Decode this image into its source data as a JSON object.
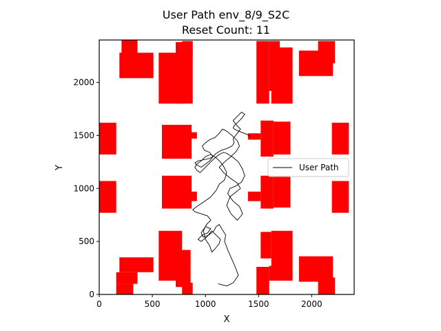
{
  "chart_data": {
    "type": "line",
    "title": "User Path env_8/9_S2C",
    "subtitle": "Reset Count: 11",
    "xlabel": "X",
    "ylabel": "Y",
    "xlim": [
      0,
      2400
    ],
    "ylim": [
      0,
      2400
    ],
    "x_ticks": [
      0,
      500,
      1000,
      1500,
      2000
    ],
    "y_ticks": [
      0,
      500,
      1000,
      1500,
      2000
    ],
    "grid": false,
    "legend": {
      "position": "right",
      "entries": [
        "User Path"
      ]
    },
    "colors": {
      "obstacle": "#ff0000",
      "path": "#000000"
    },
    "obstacles": [
      [
        160,
        0,
        160,
        100
      ],
      [
        160,
        100,
        200,
        110
      ],
      [
        190,
        210,
        320,
        140
      ],
      [
        210,
        2160,
        150,
        240
      ],
      [
        190,
        2040,
        320,
        240
      ],
      [
        560,
        130,
        220,
        470
      ],
      [
        720,
        70,
        140,
        350
      ],
      [
        780,
        0,
        100,
        110
      ],
      [
        840,
        300,
        20,
        50
      ],
      [
        560,
        1800,
        240,
        480
      ],
      [
        720,
        1800,
        160,
        580
      ],
      [
        780,
        2240,
        100,
        150
      ],
      [
        0,
        1320,
        160,
        300
      ],
      [
        0,
        770,
        160,
        300
      ],
      [
        590,
        1280,
        280,
        320
      ],
      [
        820,
        1470,
        100,
        60
      ],
      [
        590,
        810,
        280,
        310
      ],
      [
        820,
        880,
        100,
        90
      ],
      [
        1480,
        0,
        120,
        260
      ],
      [
        1600,
        130,
        100,
        140
      ],
      [
        1520,
        340,
        100,
        250
      ],
      [
        1620,
        130,
        200,
        470
      ],
      [
        1480,
        1800,
        120,
        590
      ],
      [
        1600,
        1920,
        100,
        470
      ],
      [
        1620,
        1800,
        200,
        530
      ],
      [
        1400,
        1460,
        120,
        60
      ],
      [
        1520,
        1300,
        120,
        340
      ],
      [
        1640,
        1320,
        160,
        310
      ],
      [
        1400,
        880,
        120,
        90
      ],
      [
        1520,
        810,
        120,
        310
      ],
      [
        1640,
        820,
        160,
        300
      ],
      [
        1880,
        2060,
        320,
        240
      ],
      [
        2060,
        2180,
        160,
        210
      ],
      [
        1880,
        120,
        320,
        240
      ],
      [
        2060,
        0,
        160,
        160
      ],
      [
        2190,
        1320,
        160,
        300
      ],
      [
        2190,
        770,
        160,
        300
      ]
    ],
    "series": [
      {
        "name": "User Path",
        "x": [
          1120,
          1200,
          1260,
          1310,
          1280,
          1250,
          1210,
          1180,
          1190,
          1160,
          1130,
          1100,
          1080,
          1030,
          980,
          960,
          1000,
          1050,
          1020,
          970,
          930,
          960,
          1010,
          1060,
          1100,
          1140,
          1130,
          1090,
          1060,
          1040,
          1000,
          980,
          1010,
          1050,
          1020,
          960,
          900,
          880,
          920,
          980,
          1050,
          1100,
          1130,
          1180,
          1200,
          1170,
          1140,
          1100,
          1050,
          1000,
          960,
          920,
          900,
          920,
          950,
          980,
          1030,
          1080,
          1130,
          1170,
          1200,
          1250,
          1310,
          1350,
          1370,
          1340,
          1280,
          1230,
          1210,
          1260,
          1320,
          1350,
          1300,
          1240,
          1200,
          1230,
          1280,
          1330,
          1300,
          1230,
          1170,
          1130,
          1180,
          1240,
          1290,
          1320,
          1300,
          1250,
          1200,
          1160,
          1130,
          1090,
          1040,
          1000,
          970,
          990,
          1040,
          1070,
          1030,
          980,
          930,
          900,
          920,
          960,
          1000,
          1040,
          1070,
          1100,
          1150,
          1210,
          1250,
          1270,
          1260,
          1300,
          1330,
          1290,
          1260,
          1300,
          1340,
          1370,
          1340,
          1300,
          1270,
          1260,
          1290,
          1340,
          1390,
          1420
        ],
        "y": [
          100,
          80,
          110,
          180,
          260,
          330,
          420,
          500,
          560,
          610,
          660,
          640,
          600,
          560,
          540,
          580,
          640,
          620,
          580,
          560,
          520,
          500,
          540,
          600,
          560,
          520,
          480,
          430,
          400,
          460,
          520,
          600,
          660,
          700,
          740,
          760,
          780,
          800,
          830,
          870,
          920,
          980,
          1040,
          1080,
          1150,
          1210,
          1250,
          1290,
          1320,
          1300,
          1260,
          1230,
          1200,
          1170,
          1150,
          1180,
          1230,
          1280,
          1320,
          1340,
          1330,
          1300,
          1250,
          1180,
          1120,
          1060,
          1020,
          1000,
          950,
          880,
          830,
          760,
          700,
          760,
          840,
          920,
          960,
          1000,
          1050,
          1100,
          1150,
          1200,
          1250,
          1300,
          1350,
          1400,
          1450,
          1500,
          1540,
          1560,
          1520,
          1480,
          1460,
          1430,
          1400,
          1360,
          1340,
          1300,
          1280,
          1270,
          1260,
          1240,
          1220,
          1200,
          1230,
          1260,
          1300,
          1330,
          1360,
          1380,
          1400,
          1430,
          1470,
          1520,
          1560,
          1600,
          1640,
          1680,
          1720,
          1700,
          1660,
          1620,
          1590,
          1570,
          1550,
          1530,
          1510,
          1490
        ]
      }
    ]
  }
}
